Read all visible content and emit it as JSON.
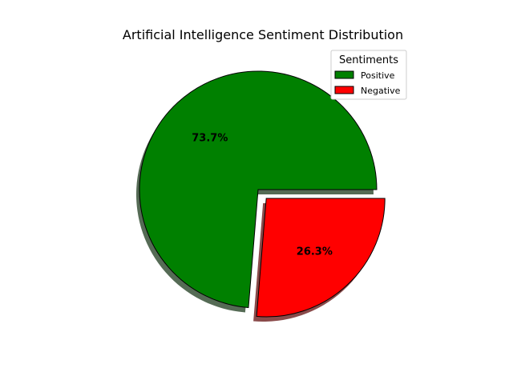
{
  "chart_data": {
    "type": "pie",
    "title": "Artificial Intelligence Sentiment Distribution",
    "labels": [
      "Positive",
      "Negative"
    ],
    "values": [
      73.7,
      26.3
    ],
    "percent_labels": [
      "73.7%",
      "26.3%"
    ],
    "colors": [
      "#008000",
      "#ff0000"
    ],
    "explode": [
      false,
      true
    ],
    "shadow": true,
    "legend": {
      "title": "Sentiments",
      "placement": "top-right"
    }
  }
}
